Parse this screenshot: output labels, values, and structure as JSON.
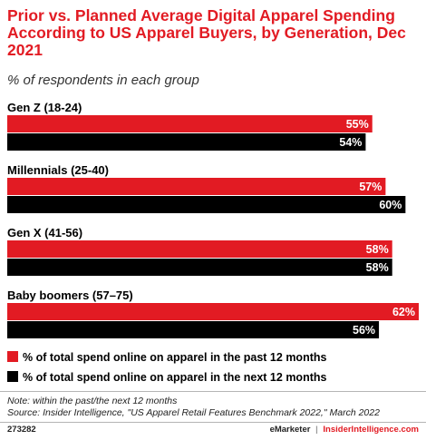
{
  "header": {
    "title": "Prior vs. Planned Average Digital Apparel Spending According to US Apparel Buyers, by Generation, Dec 2021",
    "subtitle": "% of respondents in each group"
  },
  "footer": {
    "note": "Note: within the past/the next 12 months",
    "source": "Source: Insider Intelligence, \"US Apparel Retail Features Benchmark 2022,\" March 2022",
    "chart_id": "273282",
    "brand_left": "eMarketer",
    "brand_sep": "|",
    "brand_right": "InsiderIntelligence.com"
  },
  "colors": {
    "past": "#e21b23",
    "next": "#000000",
    "title": "#e21b23"
  },
  "chart_data": {
    "type": "bar",
    "orientation": "horizontal",
    "categories": [
      "Gen Z (18-24)",
      "Millennials (25-40)",
      "Gen X (41-56)",
      "Baby boomers (57–75)"
    ],
    "series": [
      {
        "name": "% of total spend online on apparel in the past 12 months",
        "values": [
          55,
          57,
          58,
          62
        ],
        "labels": [
          "55%",
          "57%",
          "58%",
          "62%"
        ],
        "color": "#e21b23"
      },
      {
        "name": "% of total spend online on apparel in the next 12 months",
        "values": [
          54,
          60,
          58,
          56
        ],
        "labels": [
          "54%",
          "60%",
          "58%",
          "56%"
        ],
        "color": "#000000"
      }
    ],
    "xlim": [
      0,
      62
    ],
    "grid": false,
    "legend_position": "bottom-left"
  }
}
